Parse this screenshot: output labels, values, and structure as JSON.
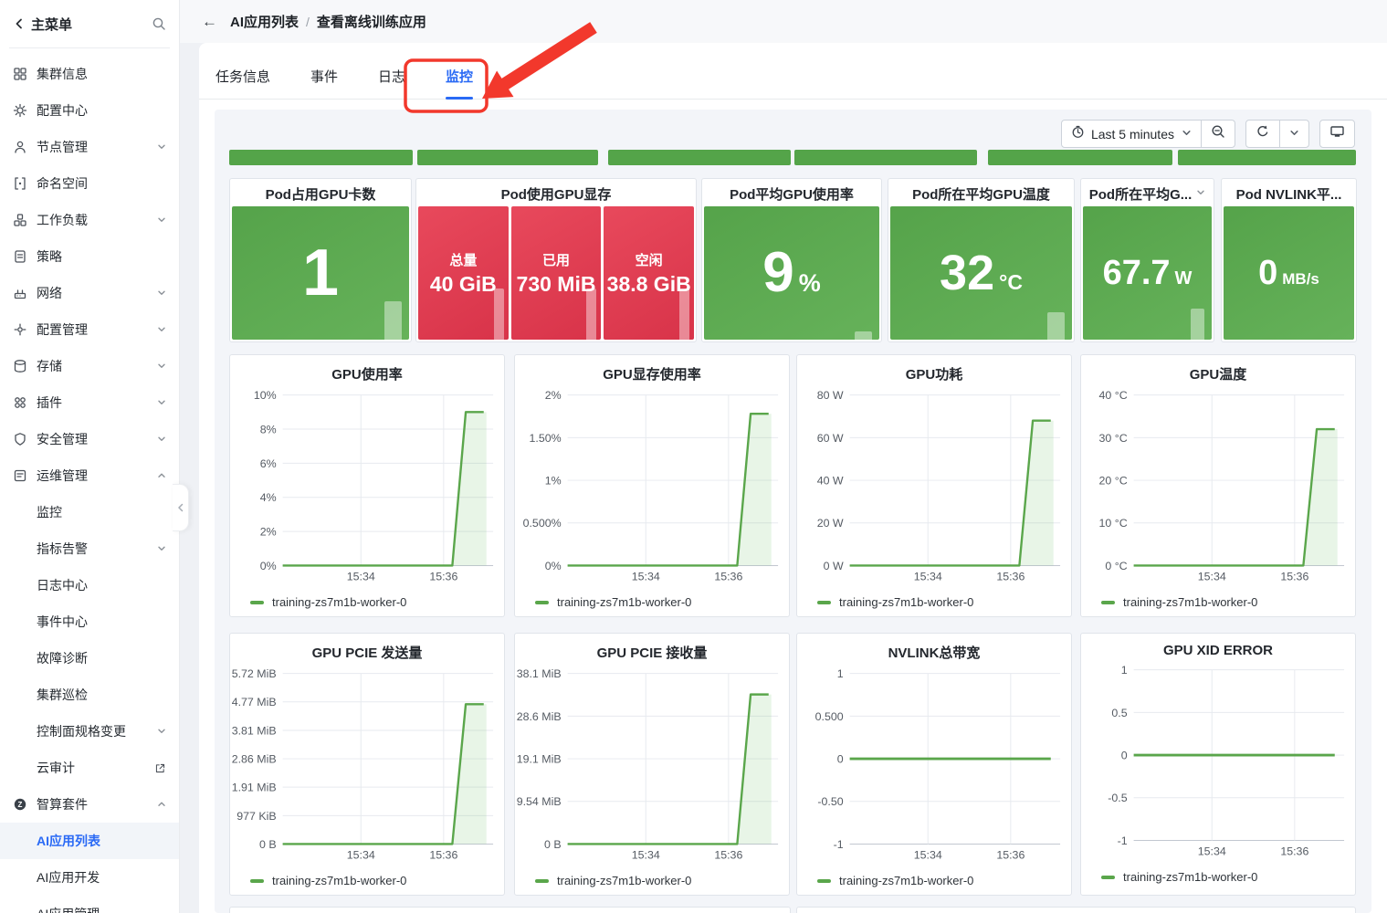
{
  "colors": {
    "accent_blue": "#2a6af5",
    "panel_green": "#5aa94f",
    "panel_red": "#dd3c51",
    "line_green": "#5aa64b",
    "annotation_red": "#f2382c",
    "dashboard_bg": "#f3f5f9"
  },
  "sidebar": {
    "title": "主菜单",
    "items": [
      {
        "label": "集群信息",
        "icon": "cluster-info-icon"
      },
      {
        "label": "配置中心",
        "icon": "config-center-icon"
      },
      {
        "label": "节点管理",
        "icon": "node-management-icon",
        "chevron": "down"
      },
      {
        "label": "命名空间",
        "icon": "namespace-icon"
      },
      {
        "label": "工作负载",
        "icon": "workload-icon",
        "chevron": "down"
      },
      {
        "label": "策略",
        "icon": "policy-icon"
      },
      {
        "label": "网络",
        "icon": "network-icon",
        "chevron": "down"
      },
      {
        "label": "配置管理",
        "icon": "config-management-icon",
        "chevron": "down"
      },
      {
        "label": "存储",
        "icon": "storage-icon",
        "chevron": "down"
      },
      {
        "label": "插件",
        "icon": "plugin-icon",
        "chevron": "down"
      },
      {
        "label": "安全管理",
        "icon": "security-icon",
        "chevron": "down"
      },
      {
        "label": "运维管理",
        "icon": "ops-icon",
        "chevron": "up"
      },
      {
        "label": "监控",
        "indent": true
      },
      {
        "label": "指标告警",
        "indent": true,
        "chevron": "down"
      },
      {
        "label": "日志中心",
        "indent": true
      },
      {
        "label": "事件中心",
        "indent": true
      },
      {
        "label": "故障诊断",
        "indent": true
      },
      {
        "label": "集群巡检",
        "indent": true
      },
      {
        "label": "控制面规格变更",
        "indent": true,
        "chevron": "down"
      },
      {
        "label": "云审计",
        "indent": true,
        "external": true
      },
      {
        "label": "智算套件",
        "icon": "ai-suite-icon",
        "chevron": "up"
      },
      {
        "label": "AI应用列表",
        "indent": true,
        "active": true
      },
      {
        "label": "AI应用开发",
        "indent": true
      },
      {
        "label": "AI应用管理",
        "indent": true
      }
    ]
  },
  "header": {
    "breadcrumb": [
      "AI应用列表",
      "查看离线训练应用"
    ],
    "separator": "/"
  },
  "tabs": [
    {
      "label": "任务信息",
      "active": false
    },
    {
      "label": "事件",
      "active": false
    },
    {
      "label": "日志",
      "active": false
    },
    {
      "label": "监控",
      "active": true
    }
  ],
  "toolbar": {
    "time_range": "Last 5 minutes",
    "icons": [
      "clock-icon",
      "chevron-down-icon",
      "zoom-out-icon",
      "refresh-icon",
      "chevron-down-icon",
      "kiosk-monitor-icon"
    ]
  },
  "stat_panels": [
    {
      "title": "Pod占用GPU卡数",
      "style": "green",
      "value": "1",
      "unit": ""
    },
    {
      "title": "Pod使用GPU显存",
      "style": "red-cells",
      "cells": [
        {
          "label": "总量",
          "value": "40 GiB"
        },
        {
          "label": "已用",
          "value": "730 MiB"
        },
        {
          "label": "空闲",
          "value": "38.8 GiB"
        }
      ]
    },
    {
      "title": "Pod平均GPU使用率",
      "style": "green",
      "value": "9",
      "unit": "%"
    },
    {
      "title": "Pod所在平均GPU温度",
      "style": "green",
      "value": "32",
      "unit": "°C"
    },
    {
      "title": "Pod所在平均G...",
      "title_chevron": true,
      "style": "green",
      "value": "67.7",
      "unit": "W"
    },
    {
      "title": "Pod NVLINK平...",
      "style": "green",
      "value": "0",
      "unit": "MB/s"
    }
  ],
  "chart_data": [
    {
      "type": "line",
      "title": "GPU使用率",
      "shape": "rise",
      "peak_norm": 0.9,
      "ylim": [
        0,
        10
      ],
      "grid": true,
      "legend_position": "bottom",
      "y_ticks": [
        "0%",
        "2%",
        "4%",
        "6%",
        "8%",
        "10%"
      ],
      "x_ticks": [
        "15:34",
        "15:36"
      ],
      "series": [
        {
          "name": "training-zs7m1b-worker-0",
          "points": [
            [
              "15:32:10",
              0
            ],
            [
              "15:36:15",
              0
            ],
            [
              "15:36:30",
              9
            ],
            [
              "15:37:00",
              9
            ]
          ]
        }
      ]
    },
    {
      "type": "line",
      "title": "GPU显存使用率",
      "shape": "rise",
      "peak_norm": 0.89,
      "ylim": [
        0,
        2
      ],
      "grid": true,
      "legend_position": "bottom",
      "y_ticks": [
        "0%",
        "0.500%",
        "1%",
        "1.50%",
        "2%"
      ],
      "x_ticks": [
        "15:34",
        "15:36"
      ],
      "series": [
        {
          "name": "training-zs7m1b-worker-0",
          "points": [
            [
              "15:32:10",
              0
            ],
            [
              "15:36:15",
              0
            ],
            [
              "15:36:30",
              1.78
            ],
            [
              "15:37:00",
              1.78
            ]
          ]
        }
      ]
    },
    {
      "type": "line",
      "title": "GPU功耗",
      "shape": "rise",
      "peak_norm": 0.85,
      "ylim": [
        0,
        80
      ],
      "grid": true,
      "legend_position": "bottom",
      "y_ticks": [
        "0 W",
        "20 W",
        "40 W",
        "60 W",
        "80 W"
      ],
      "x_ticks": [
        "15:34",
        "15:36"
      ],
      "series": [
        {
          "name": "training-zs7m1b-worker-0",
          "points": [
            [
              "15:32:10",
              0
            ],
            [
              "15:36:15",
              0
            ],
            [
              "15:36:30",
              68
            ],
            [
              "15:37:00",
              68
            ]
          ]
        }
      ]
    },
    {
      "type": "line",
      "title": "GPU温度",
      "shape": "rise",
      "peak_norm": 0.8,
      "ylim": [
        0,
        40
      ],
      "grid": true,
      "legend_position": "bottom",
      "y_ticks": [
        "0 °C",
        "10 °C",
        "20 °C",
        "30 °C",
        "40 °C"
      ],
      "x_ticks": [
        "15:34",
        "15:36"
      ],
      "series": [
        {
          "name": "training-zs7m1b-worker-0",
          "points": [
            [
              "15:32:10",
              0
            ],
            [
              "15:36:15",
              0
            ],
            [
              "15:36:30",
              32
            ],
            [
              "15:37:00",
              32
            ]
          ]
        }
      ]
    },
    {
      "type": "line",
      "title": "GPU PCIE 发送量",
      "shape": "rise",
      "peak_norm": 0.82,
      "ylim_label": [
        "0 B",
        "5.72 MiB"
      ],
      "grid": true,
      "legend_position": "bottom",
      "y_ticks": [
        "0 B",
        "977 KiB",
        "1.91 MiB",
        "2.86 MiB",
        "3.81 MiB",
        "4.77 MiB",
        "5.72 MiB"
      ],
      "x_ticks": [
        "15:34",
        "15:36"
      ],
      "series": [
        {
          "name": "training-zs7m1b-worker-0",
          "points": [
            [
              "15:32:10",
              "0 B"
            ],
            [
              "15:36:15",
              "0 B"
            ],
            [
              "15:36:30",
              "4.7 MiB"
            ],
            [
              "15:37:00",
              "4.7 MiB"
            ]
          ]
        }
      ]
    },
    {
      "type": "line",
      "title": "GPU PCIE 接收量",
      "shape": "rise",
      "peak_norm": 0.877,
      "ylim_label": [
        "0 B",
        "38.1 MiB"
      ],
      "grid": true,
      "legend_position": "bottom",
      "y_ticks": [
        "0 B",
        "9.54 MiB",
        "19.1 MiB",
        "28.6 MiB",
        "38.1 MiB"
      ],
      "x_ticks": [
        "15:34",
        "15:36"
      ],
      "series": [
        {
          "name": "training-zs7m1b-worker-0",
          "points": [
            [
              "15:32:10",
              "0 B"
            ],
            [
              "15:36:15",
              "0 B"
            ],
            [
              "15:36:30",
              "33.5 MiB"
            ],
            [
              "15:37:00",
              "33.5 MiB"
            ]
          ]
        }
      ]
    },
    {
      "type": "line",
      "title": "NVLINK总带宽",
      "shape": "flat",
      "peak_norm": 0.5,
      "ylim": [
        -1,
        1
      ],
      "grid": true,
      "legend_position": "bottom",
      "y_ticks": [
        "-1",
        "-0.50",
        "0",
        "0.500",
        "1"
      ],
      "x_ticks": [
        "15:34",
        "15:36"
      ],
      "series": [
        {
          "name": "training-zs7m1b-worker-0",
          "points": [
            [
              "15:32:10",
              0
            ],
            [
              "15:37:00",
              0
            ]
          ]
        }
      ]
    },
    {
      "type": "line",
      "title": "GPU XID ERROR",
      "shape": "flat",
      "peak_norm": 0.5,
      "ylim": [
        -1,
        1
      ],
      "grid": true,
      "legend_position": "bottom",
      "y_ticks": [
        "-1",
        "-0.5",
        "0",
        "0.5",
        "1"
      ],
      "x_ticks": [
        "15:34",
        "15:36"
      ],
      "series": [
        {
          "name": "training-zs7m1b-worker-0",
          "points": [
            [
              "15:32:10",
              0
            ],
            [
              "15:37:00",
              0
            ]
          ]
        }
      ]
    }
  ]
}
